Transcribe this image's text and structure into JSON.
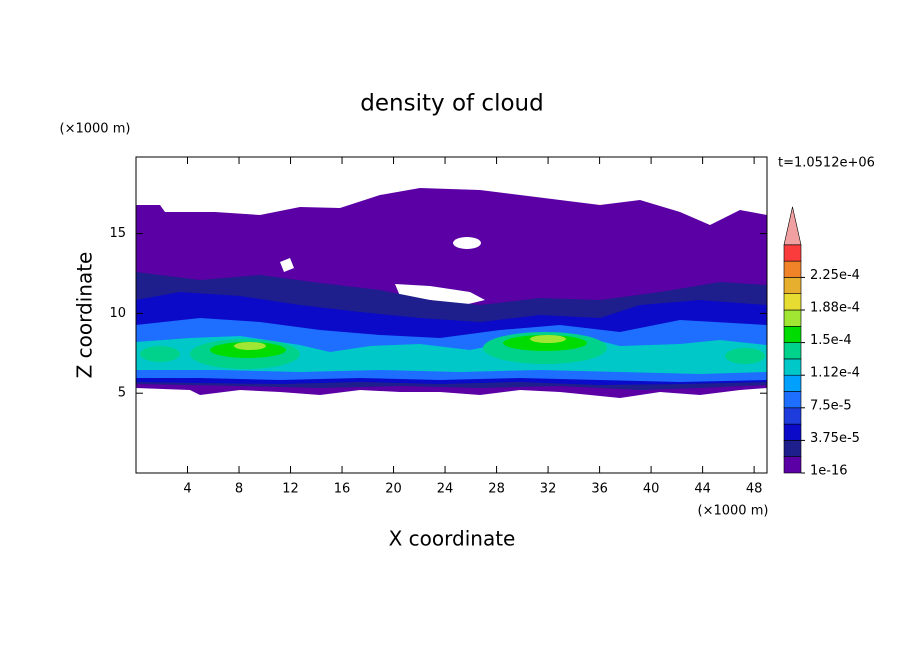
{
  "chart_data": {
    "type": "contour",
    "title": "density of cloud",
    "x_label": "X coordinate",
    "y_label": "Z coordinate",
    "x_unit": "(×1000 m)",
    "y_unit": "(×1000 m)",
    "time_label": "t=1.0512e+06",
    "xlim": [
      0,
      49
    ],
    "ylim": [
      0,
      19.8
    ],
    "xticks": [
      4,
      8,
      12,
      16,
      20,
      24,
      28,
      32,
      36,
      40,
      44,
      48
    ],
    "yticks": [
      5,
      10,
      15
    ],
    "colorbar": {
      "colors": [
        "#5a00a5",
        "#1e1e8c",
        "#0a0ac8",
        "#1e3cdc",
        "#1e6eff",
        "#00a0ff",
        "#00c8c8",
        "#00d28c",
        "#00dc00",
        "#a0e632",
        "#e6dc32",
        "#e6af2d",
        "#f08228",
        "#fa3c3c"
      ],
      "over_color": "#f0a0a0",
      "labels": [
        {
          "value": 1e-16,
          "label": "1e-16"
        },
        {
          "value": 3.75e-05,
          "label": "3.75e-5"
        },
        {
          "value": 7.5e-05,
          "label": "7.5e-5"
        },
        {
          "value": 0.000112,
          "label": "1.12e-4"
        },
        {
          "value": 0.00015,
          "label": "1.5e-4"
        },
        {
          "value": 0.000188,
          "label": "1.88e-4"
        },
        {
          "value": 0.000225,
          "label": "2.25e-4"
        }
      ]
    }
  }
}
